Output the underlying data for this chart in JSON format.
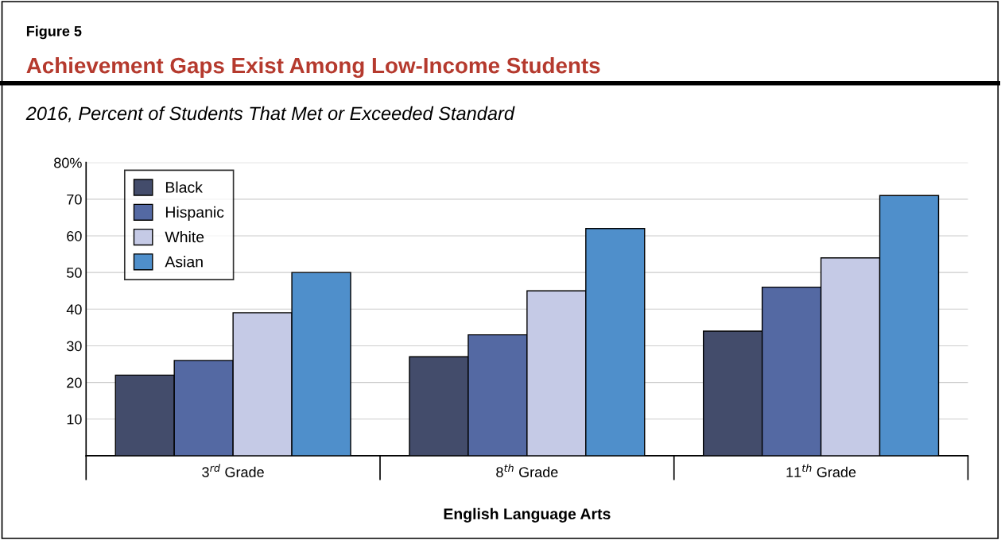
{
  "chart_data": {
    "type": "bar",
    "title": "Achievement Gaps Exist Among Low-Income Students",
    "subtitle": "2016, Percent of Students That Met or Exceeded Standard",
    "annotations": [
      "Figure 5"
    ],
    "xlabel": "English Language Arts",
    "categories": [
      "3$^{rd}$ Grade",
      "8$^{th}$ Grade",
      "11$^{th}$ Grade"
    ],
    "series": [
      {
        "name": "Black",
        "color": "#434c6b",
        "values": [
          22,
          27,
          34
        ]
      },
      {
        "name": "Hispanic",
        "color": "#5469a3",
        "values": [
          26,
          33,
          46
        ]
      },
      {
        "name": "White",
        "color": "#c5cae6",
        "values": [
          39,
          45,
          54
        ]
      },
      {
        "name": "Asian",
        "color": "#4f8fcb",
        "values": [
          50,
          62,
          71
        ]
      }
    ],
    "ylim": [
      0,
      80
    ],
    "yticks": [
      10,
      20,
      30,
      40,
      50,
      60,
      70,
      {
        "value": 80,
        "label": "80%"
      }
    ],
    "grid": "y",
    "legend": "top left"
  }
}
